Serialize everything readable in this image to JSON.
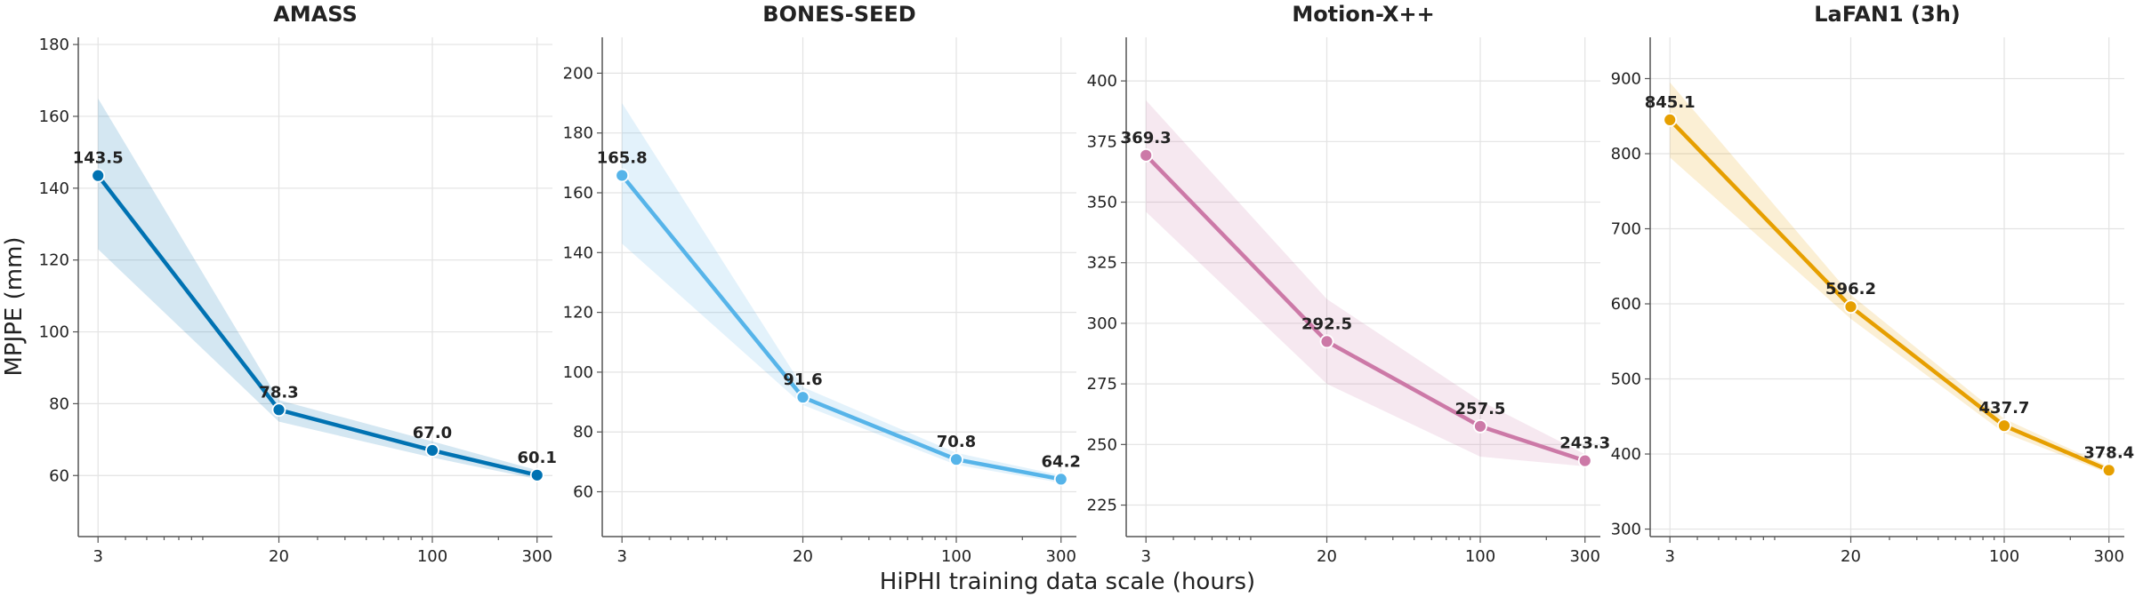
{
  "figure": {
    "xlabel": "HiPHI training data scale (hours)",
    "ylabel": "MPJPE (mm)"
  },
  "chart_data": [
    {
      "type": "line",
      "title": "AMASS",
      "x_scale": "log",
      "x": [
        3,
        20,
        100,
        300
      ],
      "x_ticks": [
        "3",
        "20",
        "100",
        "300"
      ],
      "y": [
        143.5,
        78.3,
        67.0,
        60.1
      ],
      "data_labels": [
        "143.5",
        "78.3",
        "67.0",
        "60.1"
      ],
      "band_upper": [
        165,
        81,
        69.5,
        61.5
      ],
      "band_lower": [
        123,
        75,
        65,
        59
      ],
      "ylim": [
        43,
        182
      ],
      "y_ticks": [
        60,
        80,
        100,
        120,
        140,
        160,
        180
      ],
      "color": "#0072b2",
      "band_color": "#0072b2"
    },
    {
      "type": "line",
      "title": "BONES-SEED",
      "x_scale": "log",
      "x": [
        3,
        20,
        100,
        300
      ],
      "x_ticks": [
        "3",
        "20",
        "100",
        "300"
      ],
      "y": [
        165.8,
        91.6,
        70.8,
        64.2
      ],
      "data_labels": [
        "165.8",
        "91.6",
        "70.8",
        "64.2"
      ],
      "band_upper": [
        190,
        95,
        73,
        65.5
      ],
      "band_lower": [
        143,
        89,
        69,
        63
      ],
      "ylim": [
        45,
        212
      ],
      "y_ticks": [
        60,
        80,
        100,
        120,
        140,
        160,
        180,
        200
      ],
      "color": "#56b4e9",
      "band_color": "#56b4e9"
    },
    {
      "type": "line",
      "title": "Motion-X++",
      "x_scale": "log",
      "x": [
        3,
        20,
        100,
        300
      ],
      "x_ticks": [
        "3",
        "20",
        "100",
        "300"
      ],
      "y": [
        369.3,
        292.5,
        257.5,
        243.3
      ],
      "data_labels": [
        "369.3",
        "292.5",
        "257.5",
        "243.3"
      ],
      "band_upper": [
        392,
        310,
        268,
        246
      ],
      "band_lower": [
        346,
        275,
        245,
        241
      ],
      "ylim": [
        212,
        418
      ],
      "y_ticks": [
        225,
        250,
        275,
        300,
        325,
        350,
        375,
        400
      ],
      "color": "#cc79a7",
      "band_color": "#cc79a7"
    },
    {
      "type": "line",
      "title": "LaFAN1 (3h)",
      "x_scale": "log",
      "x": [
        3,
        20,
        100,
        300
      ],
      "x_ticks": [
        "3",
        "20",
        "100",
        "300"
      ],
      "y": [
        845.1,
        596.2,
        437.7,
        378.4
      ],
      "data_labels": [
        "845.1",
        "596.2",
        "437.7",
        "378.4"
      ],
      "band_upper": [
        895,
        612,
        447,
        383
      ],
      "band_lower": [
        795,
        580,
        428,
        374
      ],
      "ylim": [
        290,
        955
      ],
      "y_ticks": [
        300,
        400,
        500,
        600,
        700,
        800,
        900
      ],
      "color": "#e69f00",
      "band_color": "#e69f00"
    }
  ]
}
